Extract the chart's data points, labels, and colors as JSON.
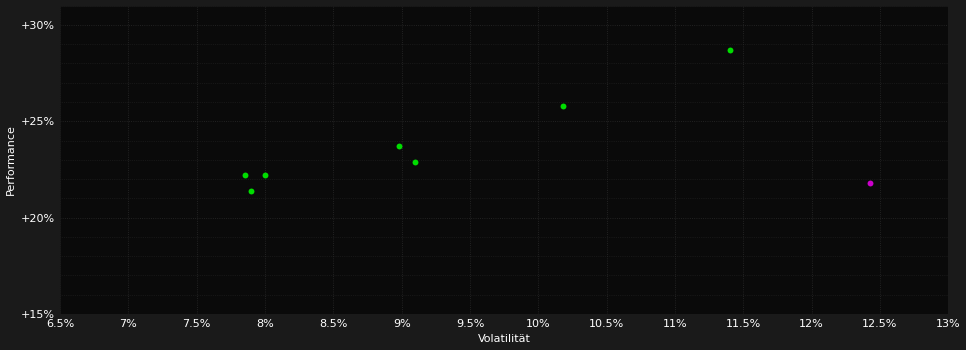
{
  "background_color": "#1a1a1a",
  "plot_bg_color": "#0a0a0a",
  "grid_color": "#2a2a2a",
  "text_color": "#ffffff",
  "xlabel": "Volatilität",
  "ylabel": "Performance",
  "xlim": [
    0.065,
    0.13
  ],
  "ylim": [
    0.15,
    0.31
  ],
  "xticks": [
    0.065,
    0.07,
    0.075,
    0.08,
    0.085,
    0.09,
    0.095,
    0.1,
    0.105,
    0.11,
    0.115,
    0.12,
    0.125,
    0.13
  ],
  "xtick_labels": [
    "6.5%",
    "7%",
    "7.5%",
    "8%",
    "8.5%",
    "9%",
    "9.5%",
    "10%",
    "10.5%",
    "11%",
    "11.5%",
    "12%",
    "12.5%",
    "13%"
  ],
  "yticks": [
    0.15,
    0.2,
    0.25,
    0.3
  ],
  "ytick_labels": [
    "+15%",
    "+20%",
    "+25%",
    "+30%"
  ],
  "minor_yticks_count": 10,
  "green_points": [
    [
      0.0785,
      0.222
    ],
    [
      0.08,
      0.222
    ],
    [
      0.079,
      0.214
    ],
    [
      0.0898,
      0.237
    ],
    [
      0.091,
      0.229
    ],
    [
      0.1018,
      0.258
    ],
    [
      0.114,
      0.287
    ]
  ],
  "magenta_points": [
    [
      0.1243,
      0.218
    ]
  ],
  "green_color": "#00dd00",
  "magenta_color": "#cc00cc",
  "marker_size": 18,
  "axis_fontsize": 8,
  "tick_fontsize": 8
}
